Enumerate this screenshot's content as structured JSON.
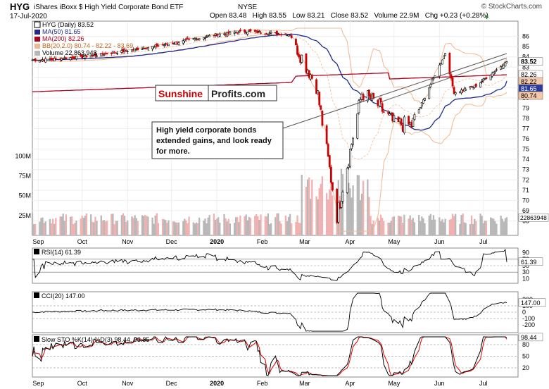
{
  "header": {
    "symbol": "HYG",
    "name": "iShares iBoxx $ High Yield Corporate Bond ETF",
    "exchange": "NYSE",
    "date": "17-Jul-2020",
    "ohlc_text": "Open 83.48   High 83.55   Low 83.21   Close 83.52   Volume 22.9M   Chg +0.23 (+0.28%)",
    "credit": "© StockCharts.com",
    "up_arrow": "▲"
  },
  "legend": {
    "price": "HYG (Daily) 83.52",
    "ma50": "MA(50) 81.65",
    "ma200": "MA(200) 82.26",
    "bb": "BB(20,2.0) 80.74 - 82.22 - 83.69",
    "volume": "Volume 22,863,948"
  },
  "watermark": {
    "sunshine": "Sunshine",
    "profits": "Profits.com"
  },
  "annotation": "High yield corporate bonds extended gains, and look ready for more.",
  "price_axis_labels": [
    "86",
    "85",
    "84",
    "83",
    "82",
    "81",
    "80",
    "79",
    "78",
    "77",
    "76",
    "75",
    "74",
    "73",
    "72",
    "71",
    "70",
    "69",
    "68"
  ],
  "volume_axis_labels": [
    "100M",
    "75M",
    "50M",
    "25M"
  ],
  "price_tags": [
    {
      "text": "83.52",
      "value": 83.52,
      "bg": "#ffffff",
      "color": "#000000",
      "bold": true
    },
    {
      "text": "82.26",
      "value": 82.26,
      "bg": "#ffffff",
      "color": "#000000",
      "bold": false
    },
    {
      "text": "82.22",
      "value": 82.22,
      "bg": "#f4c8a8",
      "color": "#000000",
      "bold": false
    },
    {
      "text": "81.65",
      "value": 81.65,
      "bg": "#2b3b9c",
      "color": "#ffffff",
      "bold": false
    },
    {
      "text": "80.74",
      "value": 80.74,
      "bg": "#f4c8a8",
      "color": "#000000",
      "bold": false
    }
  ],
  "volume_tag": "22863948",
  "month_labels": [
    "Sep",
    "Oct",
    "Nov",
    "Dec",
    "2020",
    "Feb",
    "Mar",
    "Apr",
    "May",
    "Jun",
    "Jul"
  ],
  "rsi": {
    "label": "RSI(14) 61.39",
    "axis": [
      "90",
      "70",
      "50",
      "30",
      "10"
    ],
    "tag": "61.39"
  },
  "cci": {
    "label": "CCI(20) 147.00",
    "axis": [
      "200",
      "100",
      "0",
      "-100",
      "-200"
    ],
    "tag": "147.00"
  },
  "sto": {
    "label": "Slow STO %K(14) %D(3) 98.44, 93.85",
    "axis": [
      "80",
      "50",
      "20"
    ],
    "tag": "98.44"
  },
  "colors": {
    "up": "#000000",
    "down": "#cc0000",
    "ma50": "#1f2a8c",
    "ma200": "#b00020",
    "bb": "#f0b890",
    "vol_down": "#f1b1b1",
    "vol_up": "#b8b8b8",
    "osc_fill_pos": "#4d7a45",
    "osc_fill_neg": "#8b4b4b",
    "sto_d": "#dd0000"
  },
  "chart_data": {
    "type": "candlestick",
    "title": "HYG iShares iBoxx $ High Yield Corporate Bond ETF",
    "x_range": [
      "2019-08-28",
      "2020-07-17"
    ],
    "price_ylim": [
      67,
      86.8
    ],
    "key_points": {
      "dates": [
        "2019-09-02",
        "2019-10-01",
        "2019-11-01",
        "2019-12-01",
        "2020-01-02",
        "2020-01-21",
        "2020-02-20",
        "2020-03-09",
        "2020-03-23",
        "2020-04-09",
        "2020-04-20",
        "2020-05-01",
        "2020-05-13",
        "2020-06-05",
        "2020-06-11",
        "2020-06-26",
        "2020-07-17"
      ],
      "close": [
        83.7,
        84.0,
        84.6,
        85.3,
        86.2,
        86.5,
        86.2,
        81.2,
        68.5,
        80.5,
        79.3,
        77.5,
        77.3,
        84.4,
        80.5,
        81.2,
        83.52
      ]
    },
    "ma50_latest": 81.65,
    "ma200_latest": 82.26,
    "bollinger_latest": {
      "lower": 80.74,
      "middle": 82.22,
      "upper": 83.69
    },
    "volume_ylim": [
      0,
      110000000
    ],
    "volume_latest": 22863948,
    "rsi_latest": 61.39,
    "cci_latest": 147.0,
    "stoch_latest": {
      "k": 98.44,
      "d": 93.85
    }
  }
}
